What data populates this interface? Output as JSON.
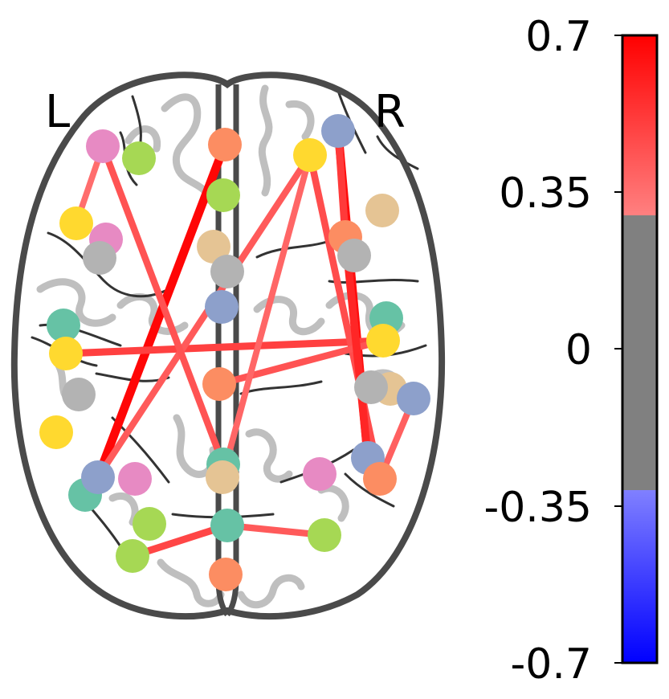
{
  "hemisphere_labels": {
    "left": "L",
    "right": "R"
  },
  "colorbar": {
    "ticks": [
      "0.7",
      "0.35",
      "0",
      "-0.35",
      "-0.7"
    ],
    "range": [
      -0.7,
      0.7
    ],
    "threshold": 0.3,
    "colors": {
      "positive_max": "#ff0000",
      "positive_min": "#ff8080",
      "neutral": "#808080",
      "negative_min": "#8080ff",
      "negative_max": "#0000ff"
    }
  },
  "node_colors": {
    "pink": "#e78ac3",
    "green": "#a6d854",
    "yellow": "#ffd92f",
    "gray": "#b3b3b3",
    "teal": "#66c2a5",
    "orange": "#fc8d62",
    "blue": "#8da0cb",
    "tan": "#e5c494"
  },
  "edge_strengths": [
    0.68,
    0.66,
    0.64,
    0.58,
    0.52,
    0.5,
    0.48,
    0.46,
    0.44,
    0.42,
    0.42,
    0.4,
    0.38,
    0.36
  ]
}
